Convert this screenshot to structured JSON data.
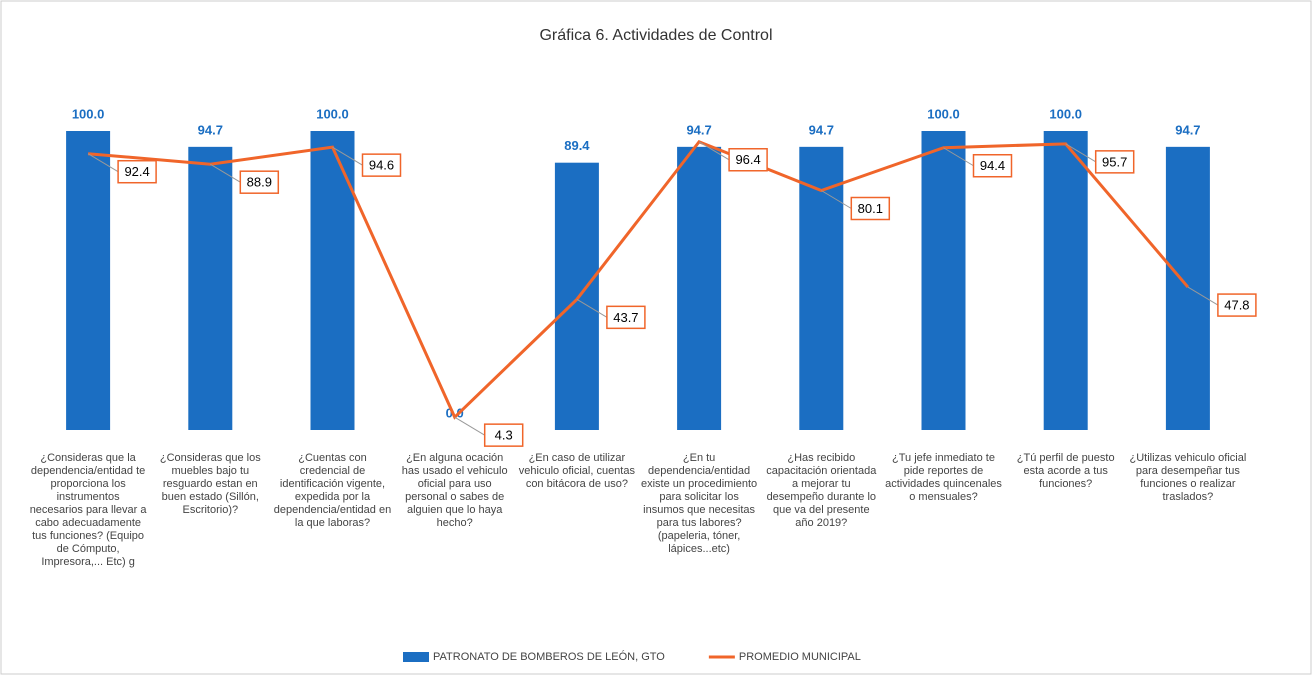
{
  "chart_data": {
    "type": "bar",
    "title": "Gráfica 6. Actividades de Control",
    "categories": [
      "¿Consideras que la dependencia/entidad te proporciona los instrumentos necesarios para llevar a cabo adecuadamente tus funciones? (Equipo de Cómputo, Impresora,... Etc) g",
      "¿Consideras que los muebles bajo tu resguardo estan en buen estado (Sillón, Escritorio)?",
      "¿Cuentas con credencial de identificación vigente, expedida por la dependencia/entidad en la que laboras?",
      "¿En alguna ocación has usado el vehiculo oficial para uso personal o sabes de alguien que lo haya hecho?",
      "¿En caso de utilizar vehiculo oficial, cuentas con bitácora de uso?",
      "¿En tu dependencia/entidad existe un procedimiento para solicitar los insumos que necesitas para tus labores? (papeleria, tóner, lápices...etc)",
      "¿Has recibido capacitación orientada a mejorar tu desempeño durante lo que va del presente año 2019?",
      "¿Tu jefe inmediato te pide reportes de actividades quincenales o mensuales?",
      "¿Tú perfil de puesto esta acorde a tus funciones?",
      "¿Utilizas vehiculo oficial para desempeñar tus funciones o realizar traslados?"
    ],
    "series": [
      {
        "name": "PATRONATO DE BOMBEROS DE LEÓN, GTO",
        "type": "bar",
        "color": "#1b6ec2",
        "values": [
          100,
          94.7,
          100,
          0,
          89.4,
          94.7,
          94.7,
          100,
          100,
          94.7
        ],
        "value_labels": [
          "100.0",
          "94.7",
          "100.0",
          "0.0",
          "89.4",
          "94.7",
          "94.7",
          "100.0",
          "100.0",
          "94.7"
        ]
      },
      {
        "name": "PROMEDIO MUNICIPAL",
        "type": "line",
        "color": "#f0652a",
        "values": [
          92.4,
          88.9,
          94.6,
          4.3,
          43.7,
          96.4,
          80.1,
          94.4,
          95.7,
          47.8
        ]
      }
    ],
    "ylim": [
      0,
      100
    ],
    "legend": "bottom"
  }
}
